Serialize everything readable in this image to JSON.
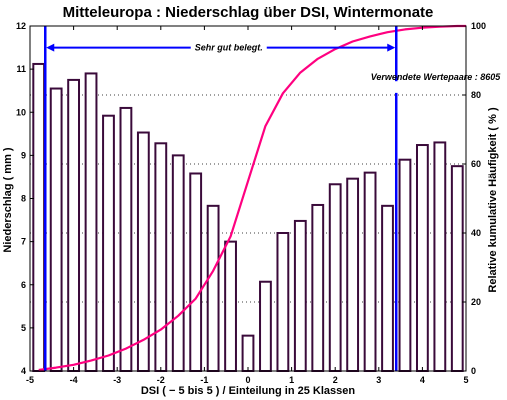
{
  "chart_data": {
    "type": "bar",
    "title": "Mitteleuropa : Niederschlag über DSI, Wintermonate",
    "xlabel": "DSI ( − 5 bis 5 ) / Einteilung in 25 Klassen",
    "ylabel": "Niederschlag ( mm )",
    "y2label": "Relative kumulative Häufigkeit ( % )",
    "xlim": [
      -5,
      5
    ],
    "ylim": [
      4,
      12
    ],
    "y2lim": [
      0,
      100
    ],
    "x_ticks": [
      "-5",
      "-4",
      "-3",
      "-2",
      "-1",
      "0",
      "1",
      "2",
      "3",
      "4",
      "5"
    ],
    "y_ticks": [
      "4",
      "5",
      "6",
      "7",
      "8",
      "9",
      "10",
      "11",
      "12"
    ],
    "y2_ticks": [
      "0",
      "20",
      "40",
      "60",
      "80",
      "100"
    ],
    "grid": "horizontal dotted lines at right-axis ticks",
    "bars": {
      "x": [
        -4.8,
        -4.4,
        -4.0,
        -3.6,
        -3.2,
        -2.8,
        -2.4,
        -2.0,
        -1.6,
        -1.2,
        -0.8,
        -0.4,
        0.0,
        0.4,
        0.8,
        1.2,
        1.6,
        2.0,
        2.4,
        2.8,
        3.2,
        3.6,
        4.0,
        4.4,
        4.8
      ],
      "values": [
        11.12,
        10.55,
        10.75,
        10.9,
        9.92,
        10.1,
        9.53,
        9.28,
        9.0,
        8.58,
        7.83,
        7.0,
        4.82,
        6.07,
        7.2,
        7.48,
        7.85,
        8.33,
        8.46,
        8.6,
        7.83,
        8.9,
        9.24,
        9.3,
        8.75
      ],
      "color": "#3a0a3a",
      "fill": "#ffffff"
    },
    "cumulative_curve": {
      "axis": "right",
      "color": "#ff0080",
      "x": [
        -4.8,
        -4.4,
        -4.0,
        -3.6,
        -3.2,
        -2.8,
        -2.4,
        -2.0,
        -1.6,
        -1.2,
        -0.8,
        -0.4,
        0.0,
        0.4,
        0.8,
        1.2,
        1.6,
        2.0,
        2.4,
        2.8,
        3.2,
        3.6,
        4.0,
        4.4,
        4.8,
        5.0
      ],
      "y": [
        0.3,
        1.0,
        1.8,
        3.0,
        4.5,
        6.5,
        9.0,
        12.0,
        16.0,
        21.0,
        29.0,
        39.0,
        55.0,
        71.0,
        80.5,
        86.5,
        90.5,
        93.3,
        95.5,
        97.0,
        98.2,
        99.0,
        99.5,
        99.8,
        100.0,
        100.0
      ]
    },
    "markers": {
      "color": "#0000ff",
      "lines_x": [
        -4.65,
        3.4
      ],
      "arrow_y": 11.5,
      "arrow_label": "Sehr gut belegt.",
      "annotation": "Verwendete Wertepaare : 8605"
    }
  }
}
